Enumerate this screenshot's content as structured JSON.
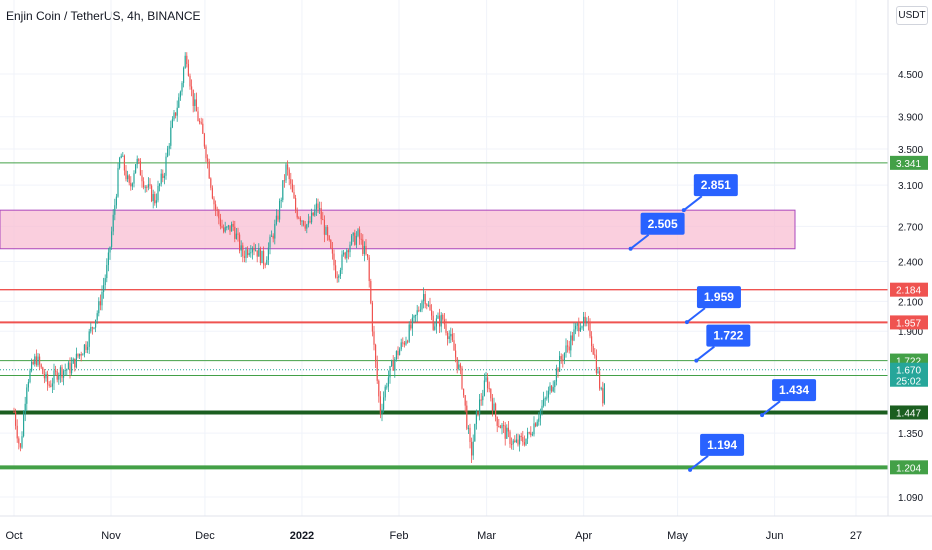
{
  "header": {
    "title": "Enjin Coin / TetherUS, 4h, BINANCE",
    "unit": "USDT"
  },
  "colors": {
    "up": "#26a69a",
    "down": "#ef5350",
    "callout": "#2962ff",
    "support_dark": "#1b5e20",
    "support": "#43a047",
    "resistance": "#ef5350",
    "zone": "#f8bbd0",
    "zone_border": "#ab47bc",
    "last_price": "#26a69a"
  },
  "chart_data": {
    "type": "candlestick",
    "title": "Enjin Coin / TetherUS, 4h, BINANCE",
    "xlabel": "",
    "ylabel": "",
    "ylim": [
      1.0,
      5.6
    ],
    "y_scale": "log",
    "y_ticks": [
      "4.500",
      "3.900",
      "3.500",
      "3.100",
      "2.700",
      "2.400",
      "2.100",
      "1.900",
      "1.350",
      "1.090"
    ],
    "x_ticks": [
      "Oct",
      "Nov",
      "Dec",
      "2022",
      "Feb",
      "Mar",
      "Apr",
      "May",
      "Jun",
      "27"
    ],
    "price_path": [
      [
        "2021-10-01",
        1.45
      ],
      [
        "2021-10-03",
        1.27
      ],
      [
        "2021-10-05",
        1.6
      ],
      [
        "2021-10-08",
        1.74
      ],
      [
        "2021-10-12",
        1.58
      ],
      [
        "2021-10-15",
        1.66
      ],
      [
        "2021-10-19",
        1.68
      ],
      [
        "2021-10-24",
        1.82
      ],
      [
        "2021-10-28",
        2.05
      ],
      [
        "2021-10-31",
        2.38
      ],
      [
        "2021-11-02",
        2.85
      ],
      [
        "2021-11-04",
        3.45
      ],
      [
        "2021-11-07",
        3.05
      ],
      [
        "2021-11-09",
        3.38
      ],
      [
        "2021-11-12",
        3.1
      ],
      [
        "2021-11-15",
        2.95
      ],
      [
        "2021-11-18",
        3.25
      ],
      [
        "2021-11-20",
        3.7
      ],
      [
        "2021-11-23",
        4.2
      ],
      [
        "2021-11-25",
        4.85
      ],
      [
        "2021-11-27",
        4.15
      ],
      [
        "2021-11-29",
        3.85
      ],
      [
        "2021-12-01",
        3.55
      ],
      [
        "2021-12-04",
        2.9
      ],
      [
        "2021-12-07",
        2.65
      ],
      [
        "2021-12-10",
        2.7
      ],
      [
        "2021-12-13",
        2.45
      ],
      [
        "2021-12-16",
        2.55
      ],
      [
        "2021-12-20",
        2.4
      ],
      [
        "2021-12-24",
        2.75
      ],
      [
        "2021-12-27",
        3.3
      ],
      [
        "2021-12-30",
        2.85
      ],
      [
        "2022-01-03",
        2.7
      ],
      [
        "2022-01-06",
        2.9
      ],
      [
        "2022-01-09",
        2.6
      ],
      [
        "2022-01-12",
        2.3
      ],
      [
        "2022-01-16",
        2.55
      ],
      [
        "2022-01-19",
        2.62
      ],
      [
        "2022-01-22",
        2.4
      ],
      [
        "2022-01-24",
        1.8
      ],
      [
        "2022-01-26",
        1.45
      ],
      [
        "2022-01-28",
        1.6
      ],
      [
        "2022-01-31",
        1.75
      ],
      [
        "2022-02-03",
        1.85
      ],
      [
        "2022-02-06",
        1.97
      ],
      [
        "2022-02-09",
        2.16
      ],
      [
        "2022-02-12",
        1.95
      ],
      [
        "2022-02-15",
        1.98
      ],
      [
        "2022-02-18",
        1.82
      ],
      [
        "2022-02-21",
        1.62
      ],
      [
        "2022-02-24",
        1.25
      ],
      [
        "2022-02-26",
        1.45
      ],
      [
        "2022-03-01",
        1.62
      ],
      [
        "2022-03-04",
        1.42
      ],
      [
        "2022-03-07",
        1.35
      ],
      [
        "2022-03-10",
        1.3
      ],
      [
        "2022-03-14",
        1.33
      ],
      [
        "2022-03-17",
        1.42
      ],
      [
        "2022-03-21",
        1.55
      ],
      [
        "2022-03-24",
        1.7
      ],
      [
        "2022-03-28",
        1.85
      ],
      [
        "2022-03-31",
        1.97
      ],
      [
        "2022-04-03",
        1.9
      ],
      [
        "2022-04-05",
        1.7
      ],
      [
        "2022-04-07",
        1.5
      ],
      [
        "2022-04-08",
        1.67
      ]
    ],
    "zone": {
      "from": 2.505,
      "to": 2.851
    },
    "levels": [
      {
        "value": "3.341",
        "style": "support",
        "tag": "3.341"
      },
      {
        "value": "2.184",
        "style": "resistance",
        "tag": "2.184"
      },
      {
        "value": "1.957",
        "style": "resistance",
        "tag": "1.957"
      },
      {
        "value": "1.722",
        "style": "support",
        "tag": "1.722"
      },
      {
        "value": "1.638",
        "style": "support",
        "tag": "1.638"
      },
      {
        "value": "1.447",
        "style": "support_dark",
        "tag": "1.447"
      },
      {
        "value": "1.204",
        "style": "support",
        "tag": "1.204"
      }
    ],
    "last_price": {
      "value": "1.670",
      "countdown": "25:02"
    },
    "callouts": [
      {
        "label": "2.851",
        "x": "2022-05-03",
        "y": 2.851
      },
      {
        "label": "2.505",
        "x": "2022-04-16",
        "y": 2.505
      },
      {
        "label": "1.959",
        "x": "2022-05-04",
        "y": 1.959
      },
      {
        "label": "1.722",
        "x": "2022-05-07",
        "y": 1.722
      },
      {
        "label": "1.434",
        "x": "2022-05-28",
        "y": 1.434
      },
      {
        "label": "1.194",
        "x": "2022-05-05",
        "y": 1.194
      }
    ]
  }
}
